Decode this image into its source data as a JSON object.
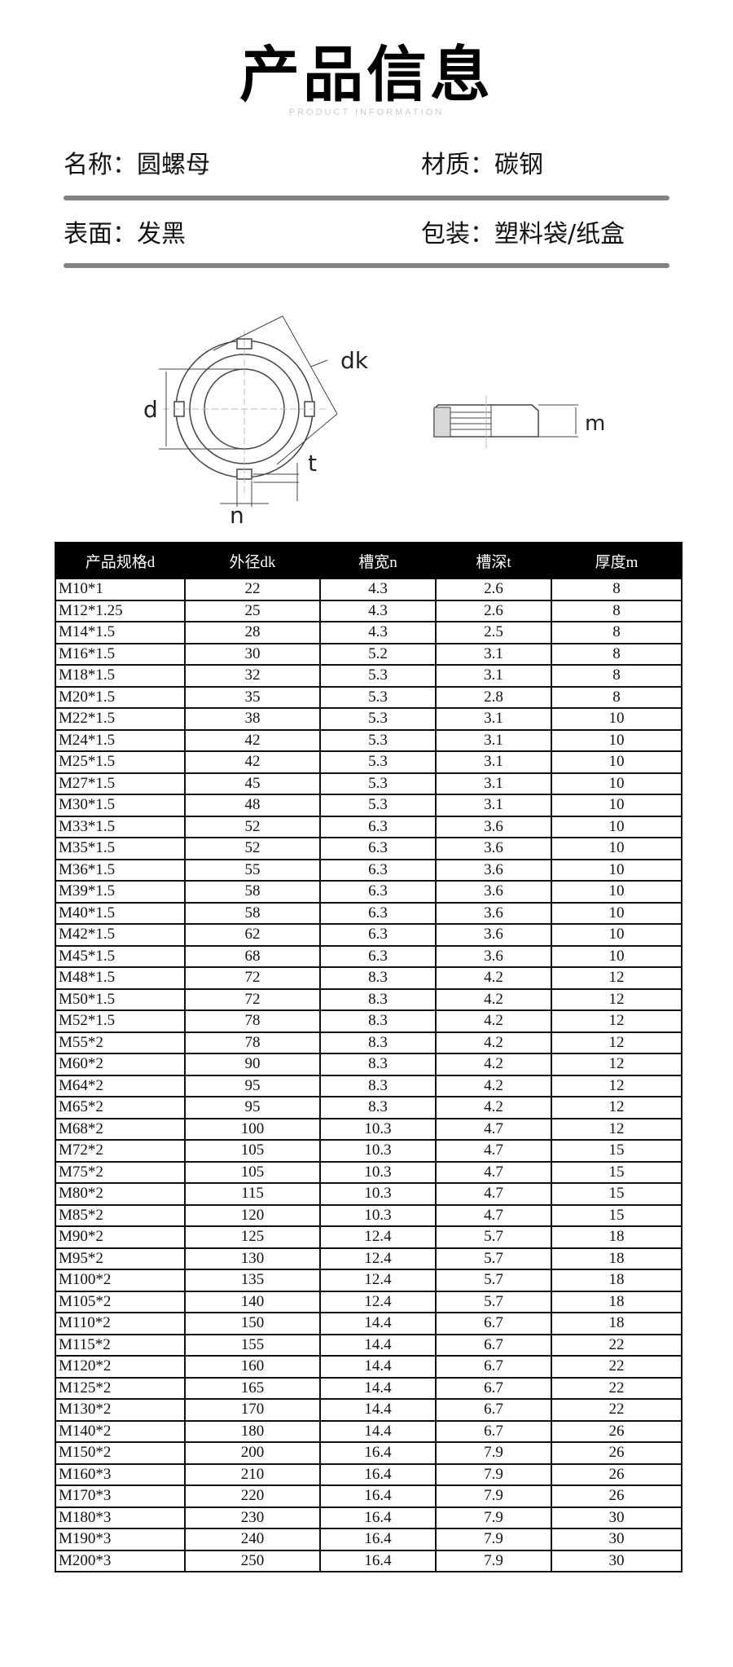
{
  "header": {
    "title": "产品信息",
    "subtitle": "PRODUCT INFORMATION"
  },
  "info": {
    "name": "名称：圆螺母",
    "material": "材质：碳钢",
    "surface": "表面：发黑",
    "packaging": "包装：塑料袋/纸盒"
  },
  "diagram": {
    "label_d": "d",
    "label_dk": "dk",
    "label_t": "t",
    "label_n": "n",
    "label_m": "m"
  },
  "table": {
    "headers": [
      "产品规格d",
      "外径dk",
      "槽宽n",
      "槽深t",
      "厚度m"
    ],
    "rows": [
      [
        "M10*1",
        "22",
        "4.3",
        "2.6",
        "8"
      ],
      [
        "M12*1.25",
        "25",
        "4.3",
        "2.6",
        "8"
      ],
      [
        "M14*1.5",
        "28",
        "4.3",
        "2.5",
        "8"
      ],
      [
        "M16*1.5",
        "30",
        "5.2",
        "3.1",
        "8"
      ],
      [
        "M18*1.5",
        "32",
        "5.3",
        "3.1",
        "8"
      ],
      [
        "M20*1.5",
        "35",
        "5.3",
        "2.8",
        "8"
      ],
      [
        "M22*1.5",
        "38",
        "5.3",
        "3.1",
        "10"
      ],
      [
        "M24*1.5",
        "42",
        "5.3",
        "3.1",
        "10"
      ],
      [
        "M25*1.5",
        "42",
        "5.3",
        "3.1",
        "10"
      ],
      [
        "M27*1.5",
        "45",
        "5.3",
        "3.1",
        "10"
      ],
      [
        "M30*1.5",
        "48",
        "5.3",
        "3.1",
        "10"
      ],
      [
        "M33*1.5",
        "52",
        "6.3",
        "3.6",
        "10"
      ],
      [
        "M35*1.5",
        "52",
        "6.3",
        "3.6",
        "10"
      ],
      [
        "M36*1.5",
        "55",
        "6.3",
        "3.6",
        "10"
      ],
      [
        "M39*1.5",
        "58",
        "6.3",
        "3.6",
        "10"
      ],
      [
        "M40*1.5",
        "58",
        "6.3",
        "3.6",
        "10"
      ],
      [
        "M42*1.5",
        "62",
        "6.3",
        "3.6",
        "10"
      ],
      [
        "M45*1.5",
        "68",
        "6.3",
        "3.6",
        "10"
      ],
      [
        "M48*1.5",
        "72",
        "8.3",
        "4.2",
        "12"
      ],
      [
        "M50*1.5",
        "72",
        "8.3",
        "4.2",
        "12"
      ],
      [
        "M52*1.5",
        "78",
        "8.3",
        "4.2",
        "12"
      ],
      [
        "M55*2",
        "78",
        "8.3",
        "4.2",
        "12"
      ],
      [
        "M60*2",
        "90",
        "8.3",
        "4.2",
        "12"
      ],
      [
        "M64*2",
        "95",
        "8.3",
        "4.2",
        "12"
      ],
      [
        "M65*2",
        "95",
        "8.3",
        "4.2",
        "12"
      ],
      [
        "M68*2",
        "100",
        "10.3",
        "4.7",
        "12"
      ],
      [
        "M72*2",
        "105",
        "10.3",
        "4.7",
        "15"
      ],
      [
        "M75*2",
        "105",
        "10.3",
        "4.7",
        "15"
      ],
      [
        "M80*2",
        "115",
        "10.3",
        "4.7",
        "15"
      ],
      [
        "M85*2",
        "120",
        "10.3",
        "4.7",
        "15"
      ],
      [
        "M90*2",
        "125",
        "12.4",
        "5.7",
        "18"
      ],
      [
        "M95*2",
        "130",
        "12.4",
        "5.7",
        "18"
      ],
      [
        "M100*2",
        "135",
        "12.4",
        "5.7",
        "18"
      ],
      [
        "M105*2",
        "140",
        "12.4",
        "5.7",
        "18"
      ],
      [
        "M110*2",
        "150",
        "14.4",
        "6.7",
        "18"
      ],
      [
        "M115*2",
        "155",
        "14.4",
        "6.7",
        "22"
      ],
      [
        "M120*2",
        "160",
        "14.4",
        "6.7",
        "22"
      ],
      [
        "M125*2",
        "165",
        "14.4",
        "6.7",
        "22"
      ],
      [
        "M130*2",
        "170",
        "14.4",
        "6.7",
        "22"
      ],
      [
        "M140*2",
        "180",
        "14.4",
        "6.7",
        "26"
      ],
      [
        "M150*2",
        "200",
        "16.4",
        "7.9",
        "26"
      ],
      [
        "M160*3",
        "210",
        "16.4",
        "7.9",
        "26"
      ],
      [
        "M170*3",
        "220",
        "16.4",
        "7.9",
        "26"
      ],
      [
        "M180*3",
        "230",
        "16.4",
        "7.9",
        "30"
      ],
      [
        "M190*3",
        "240",
        "16.4",
        "7.9",
        "30"
      ],
      [
        "M200*3",
        "250",
        "16.4",
        "7.9",
        "30"
      ]
    ]
  }
}
